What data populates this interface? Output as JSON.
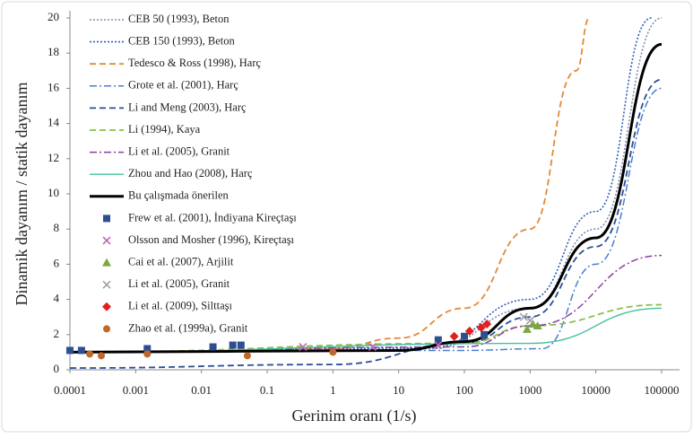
{
  "chart_data": {
    "type": "line",
    "x_label": "Gerinim oranı (1/s)",
    "y_label": "Dinamik dayanım / statik dayanım",
    "xscale": "log",
    "xlim": [
      0.0001,
      100000
    ],
    "xticks": [
      0.0001,
      0.001,
      0.01,
      0.1,
      1,
      10,
      100,
      1000,
      10000,
      100000
    ],
    "ylim": [
      0,
      20
    ],
    "yticks": [
      0,
      2,
      4,
      6,
      8,
      10,
      12,
      14,
      16,
      18,
      20
    ],
    "legend": "upper left",
    "series": [
      {
        "name": "CEB 50 (1993), Beton",
        "color": "#7f8fb0",
        "style": "dotted",
        "x": [
          0.0001,
          30,
          1000,
          10000,
          100000
        ],
        "values": [
          1,
          1.2,
          3.5,
          8,
          20
        ]
      },
      {
        "name": "CEB 150 (1993), Beton",
        "color": "#2f5fb8",
        "style": "dotted",
        "x": [
          0.0001,
          30,
          1000,
          10000,
          70000
        ],
        "values": [
          1,
          1.25,
          4,
          9,
          20
        ]
      },
      {
        "name": "Tedesco & Ross (1998), Harç",
        "color": "#e08a3a",
        "style": "dashed",
        "x": [
          0.0001,
          1,
          10,
          100,
          1000,
          5000,
          8000
        ],
        "values": [
          1,
          1.2,
          1.8,
          3.5,
          8,
          17,
          20
        ]
      },
      {
        "name": "Grote et al. (2001), Harç",
        "color": "#4a7fd0",
        "style": "dashdot",
        "x": [
          0.0001,
          100,
          1500,
          10000,
          100000
        ],
        "values": [
          1,
          1.1,
          1.2,
          6,
          16
        ]
      },
      {
        "name": "Li and Meng (2003), Harç",
        "color": "#2b4f9a",
        "style": "dashed",
        "x": [
          0.0001,
          1,
          100,
          1000,
          10000,
          100000
        ],
        "values": [
          0.1,
          0.3,
          1.5,
          3,
          7,
          16.5
        ]
      },
      {
        "name": "Li (1994),  Kaya",
        "color": "#8cbf4a",
        "style": "dashed",
        "x": [
          0.0001,
          100,
          1000,
          100000
        ],
        "values": [
          1,
          1.5,
          2.5,
          3.7
        ]
      },
      {
        "name": "Li et al. (2005), Granit",
        "color": "#8a3fa8",
        "style": "dashdot",
        "x": [
          0.0001,
          100,
          1000,
          100000
        ],
        "values": [
          1,
          1.3,
          2.5,
          6.5
        ]
      },
      {
        "name": "Zhou and Hao (2008), Harç",
        "color": "#45c0a0",
        "style": "solid-thin",
        "x": [
          0.0001,
          1000,
          100000
        ],
        "values": [
          1,
          1.5,
          3.5
        ]
      },
      {
        "name": "Bu çalışmada önerilen",
        "color": "#000000",
        "style": "solid",
        "x": [
          0.0001,
          10,
          100,
          1000,
          10000,
          100000
        ],
        "values": [
          1,
          1.1,
          1.6,
          3.5,
          7.5,
          18.5
        ]
      },
      {
        "name": "Frew et al. (2001), İndiyana Kireçtaşı",
        "color": "#2e4f8f",
        "style": "square",
        "x": [
          0.0001,
          0.00015,
          0.0015,
          0.015,
          0.03,
          0.04,
          40,
          100,
          200
        ],
        "values": [
          1.1,
          1.1,
          1.2,
          1.3,
          1.4,
          1.4,
          1.7,
          1.9,
          2
        ]
      },
      {
        "name": "Olsson and Mosher (1996), Kireçtaşı",
        "color": "#c66ab8",
        "style": "cross",
        "x": [
          0.35,
          4,
          40
        ],
        "values": [
          1.3,
          1.3,
          1.4
        ]
      },
      {
        "name": "Cai et al. (2007), Arjilit",
        "color": "#7aa840",
        "style": "triangle",
        "x": [
          900,
          1100,
          1300
        ],
        "values": [
          2.3,
          2.6,
          2.5
        ]
      },
      {
        "name": "Li et al. (2005), Granit",
        "color": "#a0a0a0",
        "style": "cross",
        "x": [
          800,
          1000
        ],
        "values": [
          3,
          2.8
        ]
      },
      {
        "name": "Li et al. (2009), Silttaşı",
        "color": "#e0201e",
        "style": "diamond",
        "x": [
          70,
          120,
          180,
          220
        ],
        "values": [
          1.9,
          2.2,
          2.4,
          2.6
        ]
      },
      {
        "name": "Zhao et al. (1999a), Granit",
        "color": "#c0682a",
        "style": "circle",
        "x": [
          0.0002,
          0.0003,
          0.0015,
          0.05,
          1
        ],
        "values": [
          0.9,
          0.8,
          0.9,
          0.8,
          1
        ]
      }
    ]
  }
}
